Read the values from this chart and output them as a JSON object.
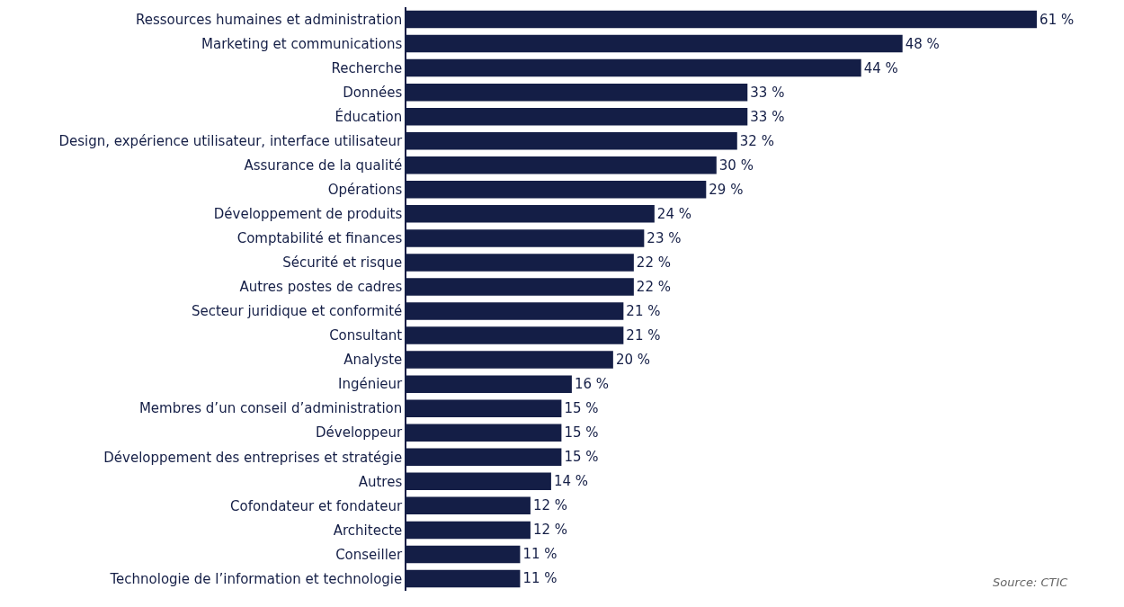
{
  "chart_data": {
    "type": "bar",
    "orientation": "horizontal",
    "categories": [
      "Ressources humaines et administration",
      "Marketing et communications",
      "Recherche",
      "Données",
      "Éducation",
      "Design, expérience utilisateur, interface utilisateur",
      "Assurance de la qualité",
      "Opérations",
      "Développement de produits",
      "Comptabilité et finances",
      "Sécurité et risque",
      "Autres postes de cadres",
      "Secteur juridique et conformité",
      "Consultant",
      "Analyste",
      "Ingénieur",
      "Membres d’un conseil d’administration",
      "Développeur",
      "Développement des entreprises et stratégie",
      "Autres",
      "Cofondateur et fondateur",
      "Architecte",
      "Conseiller",
      "Technologie de l’information et technologie"
    ],
    "values": [
      61,
      48,
      44,
      33,
      33,
      32,
      30,
      29,
      24,
      23,
      22,
      22,
      21,
      21,
      20,
      16,
      15,
      15,
      15,
      14,
      12,
      12,
      11,
      11
    ],
    "value_labels": [
      "61 %",
      "48 %",
      "44 %",
      "33 %",
      "33 %",
      "32 %",
      "30 %",
      "29 %",
      "24 %",
      "23 %",
      "22 %",
      "22 %",
      "21 %",
      "21 %",
      "20 %",
      "16 %",
      "15 %",
      "15 %",
      "15 %",
      "14 %",
      "12 %",
      "12 %",
      "11 %",
      "11 %"
    ],
    "color": "#141e46",
    "tick_labels": "y",
    "annotations": [
      "Source: CTIC"
    ]
  }
}
